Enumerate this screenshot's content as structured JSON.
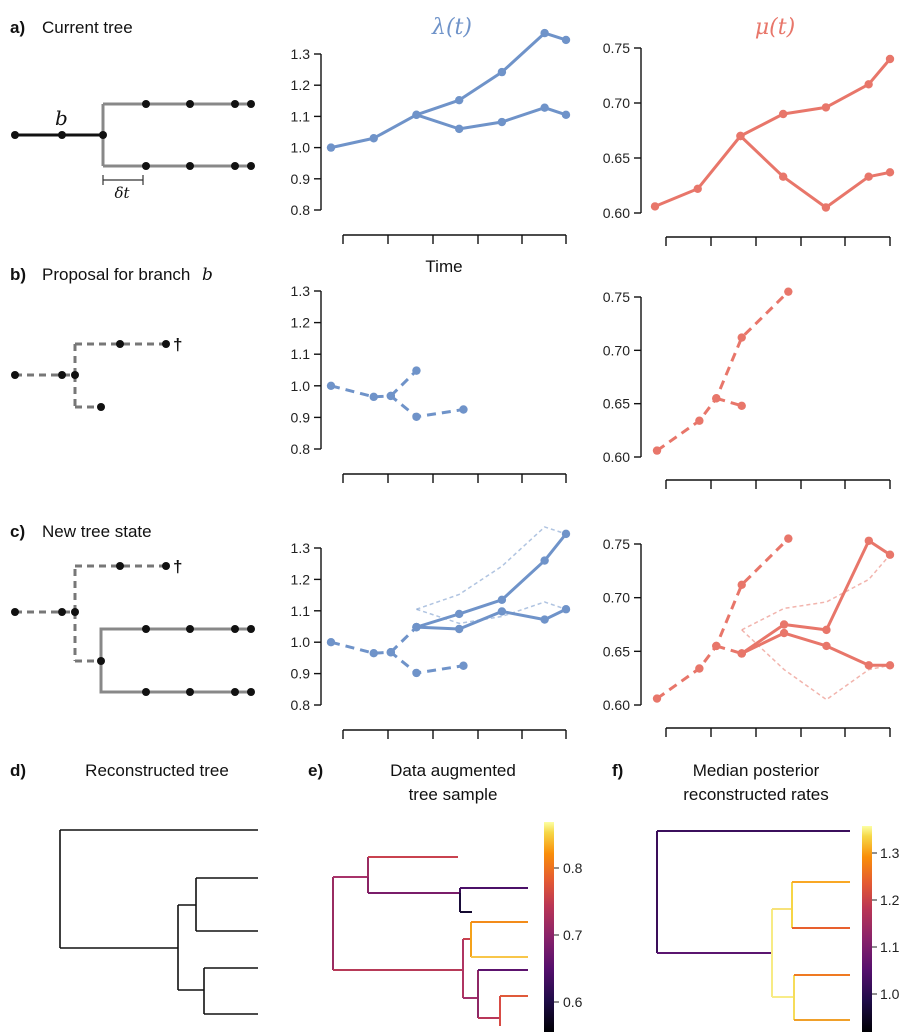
{
  "colors": {
    "lambda": "#6f93c9",
    "mu": "#e8766a",
    "tree_solid": "#888888",
    "tree_dash": "#777777",
    "branch_b": "#111111",
    "node": "#111111"
  },
  "headers": {
    "lambda": "λ(t)",
    "mu": "μ(t)"
  },
  "rows": {
    "a": {
      "letter": "a)",
      "title": "Current tree",
      "branch_label": "b",
      "dt_label": "δt"
    },
    "b": {
      "letter": "b)",
      "title": "Proposal for branch",
      "title_var": "b",
      "dagger": "†"
    },
    "c": {
      "letter": "c)",
      "title": "New tree state",
      "dagger": "†"
    }
  },
  "time_label": "Time",
  "panels_bottom": {
    "d": {
      "letter": "d)",
      "title_lines": [
        "Reconstructed tree"
      ]
    },
    "e": {
      "letter": "e)",
      "title_lines": [
        "Data augmented",
        "tree sample"
      ],
      "colorbar_ticks": [
        "0.8",
        "0.7",
        "0.6"
      ]
    },
    "f": {
      "letter": "f)",
      "title_lines": [
        "Median posterior",
        "reconstructed rates"
      ],
      "colorbar_ticks": [
        "1.3",
        "1.2",
        "1.1",
        "1.0"
      ]
    }
  },
  "chart_data": [
    {
      "id": "a-lambda",
      "type": "line",
      "ylim": [
        0.8,
        1.3
      ],
      "yticks": [
        "0.8",
        "0.9",
        "1.0",
        "1.1",
        "1.2",
        "1.3"
      ],
      "xlabel": "Time",
      "series": [
        {
          "style": "solid",
          "x": [
            0,
            1,
            2,
            3,
            4,
            5,
            5.5
          ],
          "y": [
            1.0,
            1.03,
            1.105,
            1.152,
            1.242,
            1.367,
            1.345
          ]
        },
        {
          "style": "solid",
          "x": [
            2,
            3,
            4,
            5,
            5.5
          ],
          "y": [
            1.105,
            1.06,
            1.082,
            1.128,
            1.105
          ]
        }
      ]
    },
    {
      "id": "a-mu",
      "type": "line",
      "ylim": [
        0.6,
        0.75
      ],
      "yticks": [
        "0.60",
        "0.65",
        "0.70",
        "0.75"
      ],
      "series": [
        {
          "style": "solid",
          "x": [
            0,
            1,
            2,
            3,
            4,
            5,
            5.5
          ],
          "y": [
            0.606,
            0.622,
            0.67,
            0.69,
            0.696,
            0.717,
            0.74
          ]
        },
        {
          "style": "solid",
          "x": [
            2,
            3,
            4,
            5,
            5.5
          ],
          "y": [
            0.67,
            0.633,
            0.605,
            0.633,
            0.637
          ]
        }
      ]
    },
    {
      "id": "b-lambda",
      "type": "line",
      "ylim": [
        0.8,
        1.3
      ],
      "yticks": [
        "0.8",
        "0.9",
        "1.0",
        "1.1",
        "1.2",
        "1.3"
      ],
      "series": [
        {
          "style": "dashed",
          "x": [
            0,
            1,
            1.4,
            2,
            3.1
          ],
          "y": [
            1.0,
            0.965,
            0.968,
            0.902,
            0.925
          ]
        },
        {
          "style": "dashed",
          "x": [
            1.4,
            2.0
          ],
          "y": [
            0.968,
            1.048
          ]
        }
      ]
    },
    {
      "id": "b-mu",
      "type": "line",
      "ylim": [
        0.6,
        0.75
      ],
      "yticks": [
        "0.60",
        "0.65",
        "0.70",
        "0.75"
      ],
      "series": [
        {
          "style": "dashed",
          "x": [
            0,
            1,
            1.4,
            2,
            3.1
          ],
          "y": [
            0.606,
            0.634,
            0.655,
            0.712,
            0.755
          ]
        },
        {
          "style": "dashed",
          "x": [
            1.4,
            2.0
          ],
          "y": [
            0.655,
            0.648
          ]
        }
      ]
    },
    {
      "id": "c-lambda",
      "type": "line",
      "ylim": [
        0.8,
        1.3
      ],
      "yticks": [
        "0.8",
        "0.9",
        "1.0",
        "1.1",
        "1.2",
        "1.3"
      ],
      "series": [
        {
          "style": "dashed",
          "x": [
            0,
            1,
            1.4,
            2,
            3.1
          ],
          "y": [
            1.0,
            0.965,
            0.968,
            0.902,
            0.925
          ]
        },
        {
          "style": "dashed",
          "x": [
            1.4,
            2.0
          ],
          "y": [
            0.968,
            1.048
          ]
        },
        {
          "style": "solid",
          "x": [
            2,
            3,
            4,
            5,
            5.5
          ],
          "y": [
            1.048,
            1.09,
            1.135,
            1.26,
            1.345
          ]
        },
        {
          "style": "solid",
          "x": [
            2,
            3,
            4,
            5,
            5.5
          ],
          "y": [
            1.048,
            1.042,
            1.098,
            1.072,
            1.105
          ]
        },
        {
          "style": "faint",
          "x": [
            2,
            3,
            4,
            5,
            5.5
          ],
          "y": [
            1.105,
            1.152,
            1.242,
            1.367,
            1.345
          ]
        },
        {
          "style": "faint",
          "x": [
            2,
            3,
            4,
            5,
            5.5
          ],
          "y": [
            1.105,
            1.06,
            1.082,
            1.128,
            1.105
          ]
        }
      ]
    },
    {
      "id": "c-mu",
      "type": "line",
      "ylim": [
        0.6,
        0.75
      ],
      "yticks": [
        "0.60",
        "0.65",
        "0.70",
        "0.75"
      ],
      "series": [
        {
          "style": "dashed",
          "x": [
            0,
            1,
            1.4,
            2,
            3.1
          ],
          "y": [
            0.606,
            0.634,
            0.655,
            0.712,
            0.755
          ]
        },
        {
          "style": "dashed",
          "x": [
            1.4,
            2.0
          ],
          "y": [
            0.655,
            0.648
          ]
        },
        {
          "style": "solid",
          "x": [
            2,
            3,
            4,
            5,
            5.5
          ],
          "y": [
            0.648,
            0.675,
            0.67,
            0.753,
            0.74
          ]
        },
        {
          "style": "solid",
          "x": [
            2,
            3,
            4,
            5,
            5.5
          ],
          "y": [
            0.648,
            0.667,
            0.655,
            0.637,
            0.637
          ]
        },
        {
          "style": "faint",
          "x": [
            2,
            3,
            4,
            5,
            5.5
          ],
          "y": [
            0.67,
            0.69,
            0.696,
            0.717,
            0.74
          ]
        },
        {
          "style": "faint",
          "x": [
            2,
            3,
            4,
            5,
            5.5
          ],
          "y": [
            0.67,
            0.633,
            0.605,
            0.633,
            0.637
          ]
        }
      ]
    }
  ]
}
